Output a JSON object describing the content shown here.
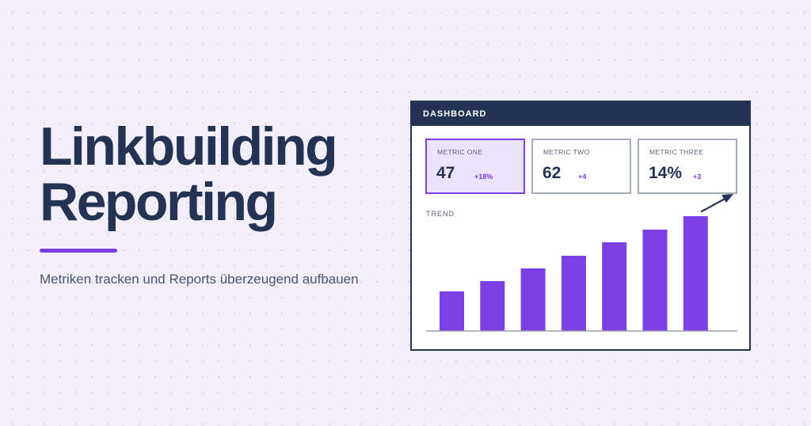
{
  "headline": {
    "line1": "Linkbuilding",
    "line2": "Reporting"
  },
  "subtitle": "Metriken tracken und Reports überzeugend aufbauen",
  "dashboard": {
    "title": "DASHBOARD",
    "metrics": [
      {
        "label": "METRIC ONE",
        "value": "47",
        "delta": "+18%",
        "active": true
      },
      {
        "label": "METRIC TWO",
        "value": "62",
        "delta": "+4",
        "active": false
      },
      {
        "label": "METRIC THREE",
        "value": "14%",
        "delta": "+3",
        "active": false
      }
    ],
    "trend_label": "TREND"
  },
  "colors": {
    "accent": "#7b3fe4",
    "navy": "#243353",
    "background": "#f3effa"
  },
  "chart_data": {
    "type": "bar",
    "categories": [
      "",
      "",
      "",
      "",
      "",
      "",
      ""
    ],
    "values": [
      50,
      63,
      79,
      95,
      112,
      128,
      145
    ],
    "title": "",
    "xlabel": "",
    "ylabel": "",
    "ylim": [
      0,
      150
    ],
    "grid": false
  }
}
